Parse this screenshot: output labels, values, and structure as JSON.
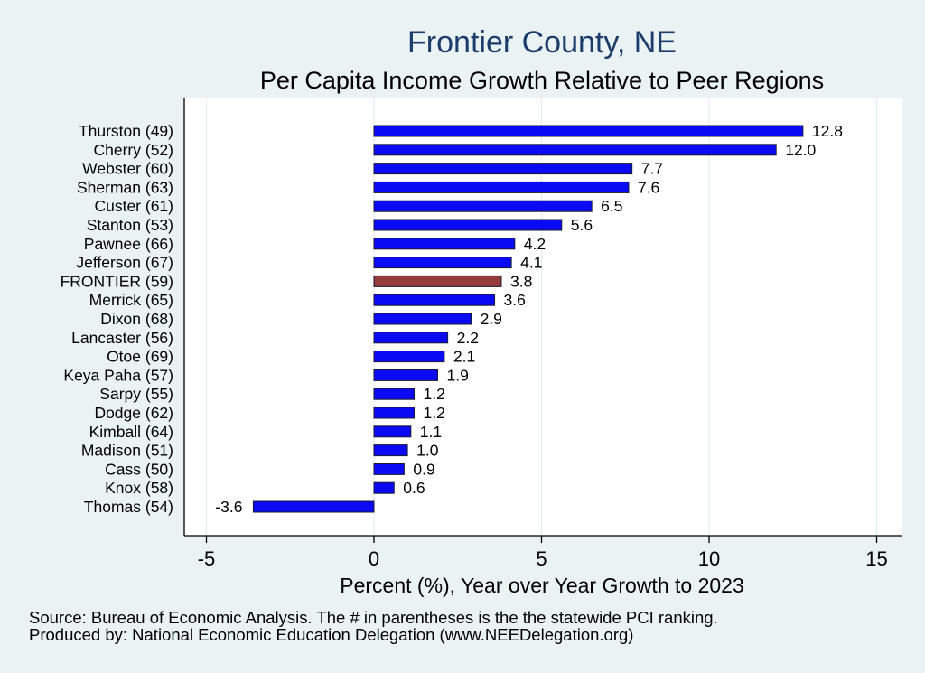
{
  "chart_data": {
    "type": "bar",
    "orientation": "horizontal",
    "title": "Frontier County, NE",
    "subtitle": "Per Capita Income Growth Relative to Peer Regions",
    "xlabel": "Percent (%), Year over Year Growth to 2023",
    "xlim": [
      -6,
      15.5
    ],
    "xticks": [
      -5,
      0,
      5,
      10,
      15
    ],
    "grid": true,
    "categories": [
      "Thurston (49)",
      "Cherry (52)",
      "Webster (60)",
      "Sherman (63)",
      "Custer (61)",
      "Stanton (53)",
      "Pawnee (66)",
      "Jefferson (67)",
      "FRONTIER (59)",
      "Merrick (65)",
      "Dixon (68)",
      "Lancaster (56)",
      "Otoe (69)",
      "Keya Paha (57)",
      "Sarpy (55)",
      "Dodge (62)",
      "Kimball (64)",
      "Madison (51)",
      "Cass (50)",
      "Knox (58)",
      "Thomas (54)"
    ],
    "values": [
      12.8,
      12.0,
      7.7,
      7.6,
      6.5,
      5.6,
      4.2,
      4.1,
      3.8,
      3.6,
      2.9,
      2.2,
      2.1,
      1.9,
      1.2,
      1.2,
      1.1,
      1.0,
      0.9,
      0.6,
      -3.6
    ],
    "value_labels": [
      "12.8",
      "12.0",
      "7.7",
      "7.6",
      "6.5",
      "5.6",
      "4.2",
      "4.1",
      "3.8",
      "3.6",
      "2.9",
      "2.2",
      "2.1",
      "1.9",
      "1.2",
      "1.2",
      "1.1",
      "1.0",
      "0.9",
      "0.6",
      "-3.6"
    ],
    "highlight_category": "FRONTIER (59)",
    "colors": {
      "bar": "#0a0af5",
      "highlight": "#943c3c",
      "outline": "#1a1a2e",
      "plot_bg": "#ffffff",
      "grid": "#e4eeef"
    }
  },
  "footer": {
    "source": "Source: Bureau of Economic Analysis. The # in parentheses is the the statewide PCI ranking.",
    "produced": "Produced by: National Economic Education Delegation (www.NEEDelegation.org)"
  }
}
